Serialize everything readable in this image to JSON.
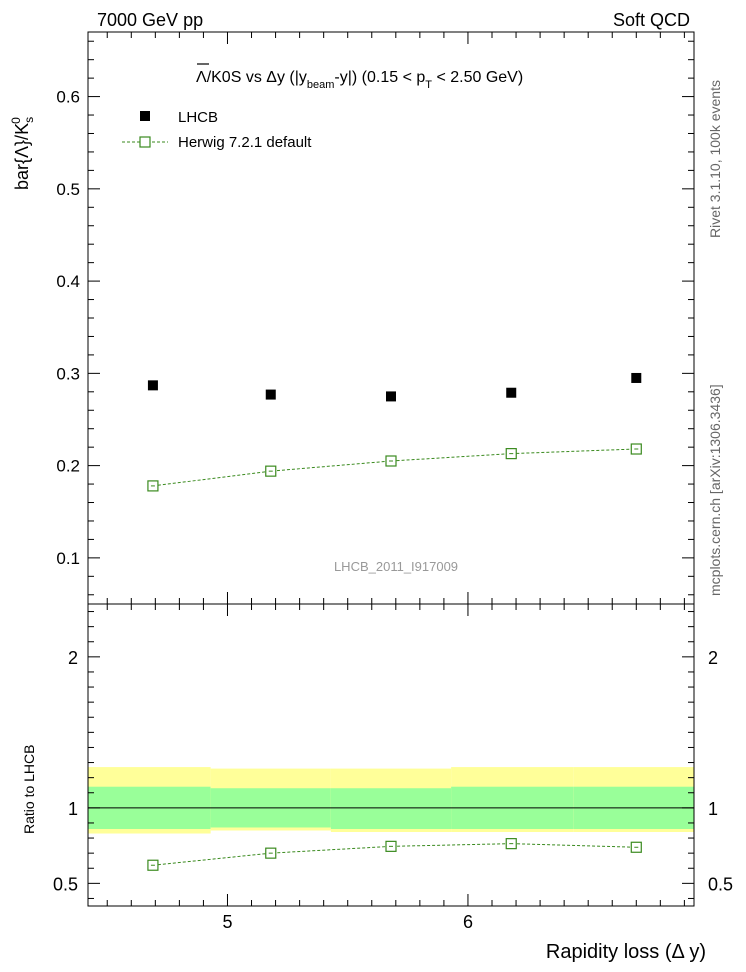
{
  "header": {
    "left": "7000 GeV pp",
    "right": "Soft QCD"
  },
  "side_labels": {
    "rivet": "Rivet 3.1.10,  100k events",
    "mcplots": "mcplots.cern.ch [arXiv:1306.3436]"
  },
  "colors": {
    "data": "#000000",
    "mc": "#3a8a1e",
    "band_inner": "#99ff99",
    "band_outer": "#ffff99"
  },
  "chart_data": [
    {
      "type": "scatter",
      "title": "Λ/K0S vs Δy (|y_beam-y|) (0.15 < p_T < 2.50 GeV)",
      "title_parts": {
        "lambda": "Λ",
        "a": "/K0S vs  Δy (|y",
        "sub1": "beam",
        "b": "-y|) (0.15 < p",
        "sub2": "T",
        "c": " < 2.50 GeV)"
      },
      "ylabel": "bar{Λ}/K",
      "ylabel_sup": "0",
      "ylabel_sub": "s",
      "watermark": "LHCB_2011_I917009",
      "xlim": [
        4.42,
        6.94
      ],
      "ylim": [
        0.05,
        0.67
      ],
      "yticks": [
        0.1,
        0.2,
        0.3,
        0.4,
        0.5,
        0.6
      ],
      "ytick_labels": [
        "0.1",
        "0.2",
        "0.3",
        "0.4",
        "0.5",
        "0.6"
      ],
      "xticks": [
        5,
        6
      ],
      "legend_position": "top-left",
      "series": [
        {
          "name": "LHCB",
          "marker": "filled-square",
          "x": [
            4.69,
            5.18,
            5.68,
            6.18,
            6.7
          ],
          "y": [
            0.287,
            0.277,
            0.275,
            0.279,
            0.295
          ],
          "bins": [
            [
              4.42,
              4.93
            ],
            [
              4.93,
              5.43
            ],
            [
              5.43,
              5.93
            ],
            [
              5.93,
              6.44
            ],
            [
              6.44,
              6.94
            ]
          ]
        },
        {
          "name": "Herwig 7.2.1 default",
          "marker": "open-square",
          "line": "dashed",
          "x": [
            4.69,
            5.18,
            5.68,
            6.18,
            6.7
          ],
          "y": [
            0.178,
            0.194,
            0.205,
            0.213,
            0.218
          ]
        }
      ]
    },
    {
      "type": "scatter",
      "ylabel": "Ratio to LHCB",
      "xlabel": "Rapidity loss (Δ y)",
      "xlim": [
        4.42,
        6.94
      ],
      "ylim": [
        0.35,
        2.35
      ],
      "yticks": [
        0.5,
        1,
        2
      ],
      "ytick_labels": [
        "0.5",
        "1",
        "2"
      ],
      "xticks": [
        5,
        6
      ],
      "xtick_labels": [
        "5",
        "6"
      ],
      "bands": {
        "bins": [
          [
            4.42,
            4.93
          ],
          [
            4.93,
            5.43
          ],
          [
            5.43,
            5.93
          ],
          [
            5.93,
            6.44
          ],
          [
            6.44,
            6.94
          ]
        ],
        "inner": [
          [
            0.86,
            1.14
          ],
          [
            0.87,
            1.13
          ],
          [
            0.86,
            1.13
          ],
          [
            0.86,
            1.14
          ],
          [
            0.86,
            1.14
          ]
        ],
        "outer": [
          [
            0.83,
            1.27
          ],
          [
            0.85,
            1.26
          ],
          [
            0.84,
            1.26
          ],
          [
            0.84,
            1.27
          ],
          [
            0.84,
            1.27
          ]
        ]
      },
      "series": [
        {
          "name": "Herwig 7.2.1 default",
          "x": [
            4.69,
            5.18,
            5.68,
            6.18,
            6.7
          ],
          "y": [
            0.62,
            0.7,
            0.745,
            0.763,
            0.739
          ]
        }
      ]
    }
  ]
}
